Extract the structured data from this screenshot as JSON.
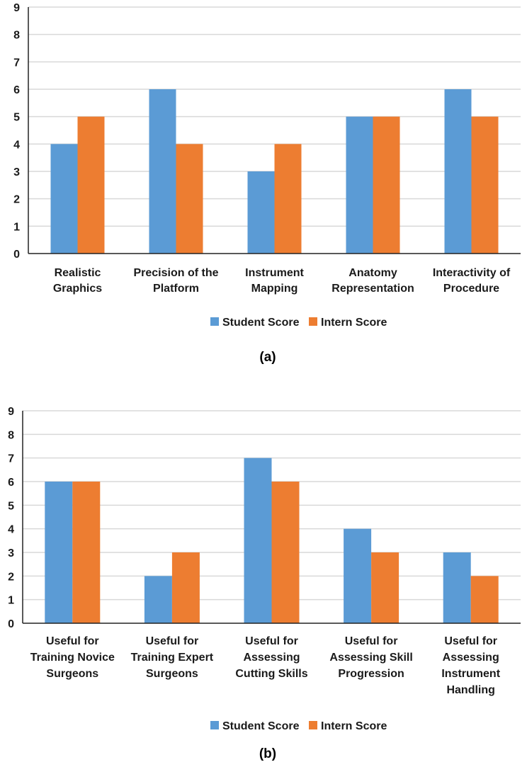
{
  "colors": {
    "student": "#5B9BD5",
    "intern": "#ED7D31",
    "grid": "#d9d9d9",
    "axis": "#222222"
  },
  "chart_data": [
    {
      "type": "bar",
      "caption": "(a)",
      "categories": [
        [
          "Realistic",
          "Graphics"
        ],
        [
          "Precision of the",
          "Platform"
        ],
        [
          "Instrument",
          "Mapping"
        ],
        [
          "Anatomy",
          "Representation"
        ],
        [
          "Interactivity of",
          "Procedure"
        ]
      ],
      "series": [
        {
          "name": "Student Score",
          "values": [
            4,
            6,
            3,
            5,
            6
          ]
        },
        {
          "name": "Intern Score",
          "values": [
            5,
            4,
            4,
            5,
            5
          ]
        }
      ],
      "ylim": [
        0,
        9
      ],
      "yticks": [
        0,
        1,
        2,
        3,
        4,
        5,
        6,
        7,
        8,
        9
      ],
      "grid": true,
      "legend": "bottom-center"
    },
    {
      "type": "bar",
      "caption": "(b)",
      "categories": [
        [
          "Useful for",
          "Training Novice",
          "Surgeons"
        ],
        [
          "Useful for",
          "Training Expert",
          "Surgeons"
        ],
        [
          "Useful for",
          "Assessing",
          "Cutting Skills"
        ],
        [
          "Useful for",
          "Assessing Skill",
          "Progression"
        ],
        [
          "Useful for",
          "Assessing",
          "Instrument",
          "Handling"
        ]
      ],
      "series": [
        {
          "name": "Student Score",
          "values": [
            6,
            2,
            7,
            4,
            3
          ]
        },
        {
          "name": "Intern Score",
          "values": [
            6,
            3,
            6,
            3,
            2
          ]
        }
      ],
      "ylim": [
        0,
        9
      ],
      "yticks": [
        0,
        1,
        2,
        3,
        4,
        5,
        6,
        7,
        8,
        9
      ],
      "grid": true,
      "legend": "bottom-center"
    }
  ]
}
